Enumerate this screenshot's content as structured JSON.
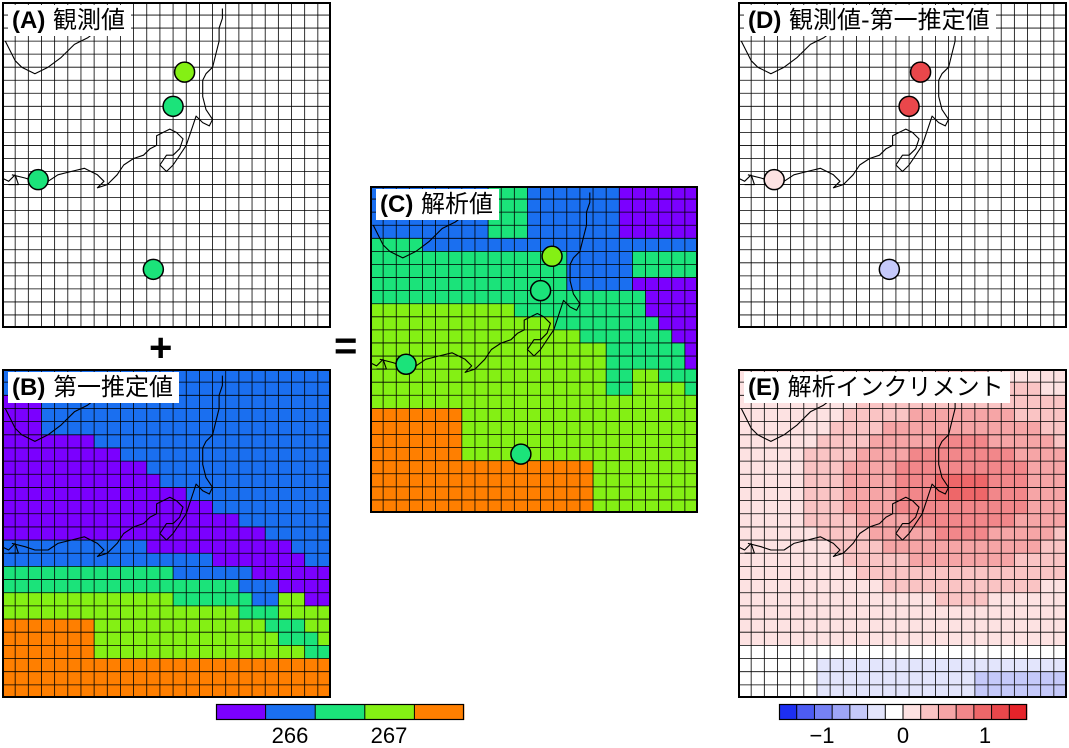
{
  "panels": {
    "A": {
      "id": "(A)",
      "title": "観測値"
    },
    "B": {
      "id": "(B)",
      "title": "第一推定値"
    },
    "C": {
      "id": "(C)",
      "title": "解析値"
    },
    "D": {
      "id": "(D)",
      "title": "観測値-第一推定値"
    },
    "E": {
      "id": "(E)",
      "title": "解析インクリメント"
    }
  },
  "operators": {
    "plus": "+",
    "equals": "="
  },
  "colorbar_left": {
    "colors": [
      "#7b00ff",
      "#1a6ff0",
      "#1be37a",
      "#84f014",
      "#ff7f00"
    ],
    "ticks": [
      "266",
      "267"
    ]
  },
  "colorbar_right": {
    "colors": [
      "#1d2ff2",
      "#4d5cf3",
      "#7681f5",
      "#9ea5f7",
      "#c5c9fa",
      "#e3e5fc",
      "#ffffff",
      "#fde2e2",
      "#fac4c4",
      "#f6a5a6",
      "#f2878a",
      "#ee6769",
      "#e9474b",
      "#e6232a"
    ],
    "ticks": [
      "−1",
      "0",
      "1"
    ]
  },
  "legend": {
    "first_guess_bands": [
      "violet",
      "blue",
      "green",
      "yellow-green",
      "orange"
    ],
    "observation_colors": {
      "a": "#84f014",
      "b": "#1be37a",
      "c": "#1be37a",
      "d": "#1be37a"
    },
    "departure_colors": {
      "a": "#e9474b",
      "b": "#e9474b",
      "c": "#fde2e2",
      "d": "#c5c9fa"
    }
  }
}
